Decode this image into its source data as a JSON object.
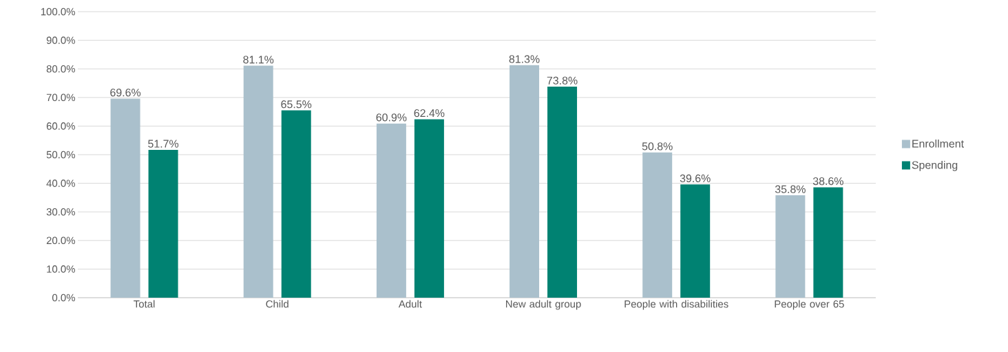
{
  "chart_data": {
    "type": "bar",
    "categories": [
      "Total",
      "Child",
      "Adult",
      "New adult group",
      "People with disabilities",
      "People over 65"
    ],
    "series": [
      {
        "name": "Enrollment",
        "color": "#aac0cc",
        "values": [
          69.6,
          81.1,
          60.9,
          81.3,
          50.8,
          35.8
        ],
        "value_labels": [
          "69.6%",
          "81.1%",
          "60.9%",
          "81.3%",
          "50.8%",
          "35.8%"
        ]
      },
      {
        "name": "Spending",
        "color": "#008272",
        "values": [
          51.7,
          65.5,
          62.4,
          73.8,
          39.6,
          38.6
        ],
        "value_labels": [
          "51.7%",
          "65.5%",
          "62.4%",
          "73.8%",
          "39.6%",
          "38.6%"
        ]
      }
    ],
    "ylim": [
      0,
      100
    ],
    "yticks": [
      {
        "value": 0,
        "label": "0.0%"
      },
      {
        "value": 10,
        "label": "10.0%"
      },
      {
        "value": 20,
        "label": "20.0%"
      },
      {
        "value": 30,
        "label": "30.0%"
      },
      {
        "value": 40,
        "label": "40.0%"
      },
      {
        "value": 50,
        "label": "50.0%"
      },
      {
        "value": 60,
        "label": "60.0%"
      },
      {
        "value": 70,
        "label": "70.0%"
      },
      {
        "value": 80,
        "label": "80.0%"
      },
      {
        "value": 90,
        "label": "90.0%"
      },
      {
        "value": 100,
        "label": "100.0%"
      }
    ],
    "grid": "y",
    "legend": "right"
  }
}
